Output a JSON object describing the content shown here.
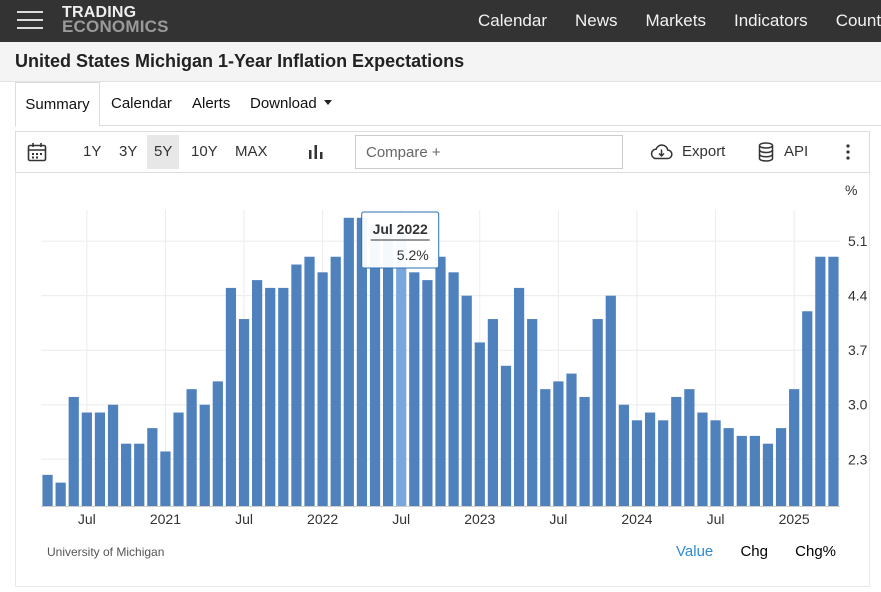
{
  "brand": {
    "line1": "TRADING",
    "line2": "ECONOMICS"
  },
  "nav": [
    "Calendar",
    "News",
    "Markets",
    "Indicators",
    "Countries"
  ],
  "page_title": "United States Michigan 1-Year Inflation Expectations",
  "tabs": {
    "summary": "Summary",
    "calendar": "Calendar",
    "alerts": "Alerts",
    "download": "Download"
  },
  "toolbar": {
    "ranges": [
      "1Y",
      "3Y",
      "5Y",
      "10Y",
      "MAX"
    ],
    "selected_range": "5Y",
    "compare_placeholder": "Compare +",
    "export": "Export",
    "api": "API"
  },
  "source": "University of Michigan",
  "legend": {
    "value": "Value",
    "chg": "Chg",
    "chg_pct": "Chg%"
  },
  "colors": {
    "bar": "#4f81bd",
    "bar_highlight": "#7aa6de",
    "value_active": "#2e8bd6"
  },
  "chart_data": {
    "type": "bar",
    "title": "United States Michigan 1-Year Inflation Expectations",
    "unit": "%",
    "ylim": [
      1.7,
      5.5
    ],
    "yticks": [
      2.3,
      3.0,
      3.7,
      4.4,
      5.1
    ],
    "x_ticks": [
      {
        "label": "Jul",
        "index": 3
      },
      {
        "label": "2021",
        "index": 9
      },
      {
        "label": "Jul",
        "index": 15
      },
      {
        "label": "2022",
        "index": 21
      },
      {
        "label": "Jul",
        "index": 27
      },
      {
        "label": "2023",
        "index": 33
      },
      {
        "label": "Jul",
        "index": 39
      },
      {
        "label": "2024",
        "index": 45
      },
      {
        "label": "Jul",
        "index": 51
      },
      {
        "label": "2025",
        "index": 57
      }
    ],
    "categories": [
      "Apr 2020",
      "May 2020",
      "Jun 2020",
      "Jul 2020",
      "Aug 2020",
      "Sep 2020",
      "Oct 2020",
      "Nov 2020",
      "Dec 2020",
      "Jan 2021",
      "Feb 2021",
      "Mar 2021",
      "Apr 2021",
      "May 2021",
      "Jun 2021",
      "Jul 2021",
      "Aug 2021",
      "Sep 2021",
      "Oct 2021",
      "Nov 2021",
      "Dec 2021",
      "Jan 2022",
      "Feb 2022",
      "Mar 2022",
      "Apr 2022",
      "May 2022",
      "Jun 2022",
      "Jul 2022",
      "Aug 2022",
      "Sep 2022",
      "Oct 2022",
      "Nov 2022",
      "Dec 2022",
      "Jan 2023",
      "Feb 2023",
      "Mar 2023",
      "Apr 2023",
      "May 2023",
      "Jun 2023",
      "Jul 2023",
      "Aug 2023",
      "Sep 2023",
      "Oct 2023",
      "Nov 2023",
      "Dec 2023",
      "Jan 2024",
      "Feb 2024",
      "Mar 2024",
      "Apr 2024",
      "May 2024",
      "Jun 2024",
      "Jul 2024",
      "Aug 2024",
      "Sep 2024",
      "Oct 2024",
      "Nov 2024",
      "Dec 2024",
      "Jan 2025",
      "Feb 2025",
      "Mar 2025",
      "Apr 2025"
    ],
    "values": [
      2.1,
      2.0,
      3.1,
      2.9,
      2.9,
      3.0,
      2.5,
      2.5,
      2.7,
      2.4,
      2.9,
      3.2,
      3.0,
      3.3,
      4.5,
      4.1,
      4.6,
      4.5,
      4.5,
      4.8,
      4.9,
      4.7,
      4.9,
      5.4,
      5.4,
      5.3,
      5.3,
      5.2,
      4.7,
      4.6,
      4.9,
      4.7,
      4.4,
      3.8,
      4.1,
      3.5,
      4.5,
      4.1,
      3.2,
      3.3,
      3.4,
      3.1,
      4.1,
      4.4,
      3.0,
      2.8,
      2.9,
      2.8,
      3.1,
      3.2,
      2.9,
      2.8,
      2.7,
      2.6,
      2.6,
      2.5,
      2.7,
      3.2,
      4.2,
      4.9,
      4.9
    ],
    "highlight": {
      "index": 27,
      "label": "Jul 2022",
      "value_text": "5.2%"
    }
  }
}
